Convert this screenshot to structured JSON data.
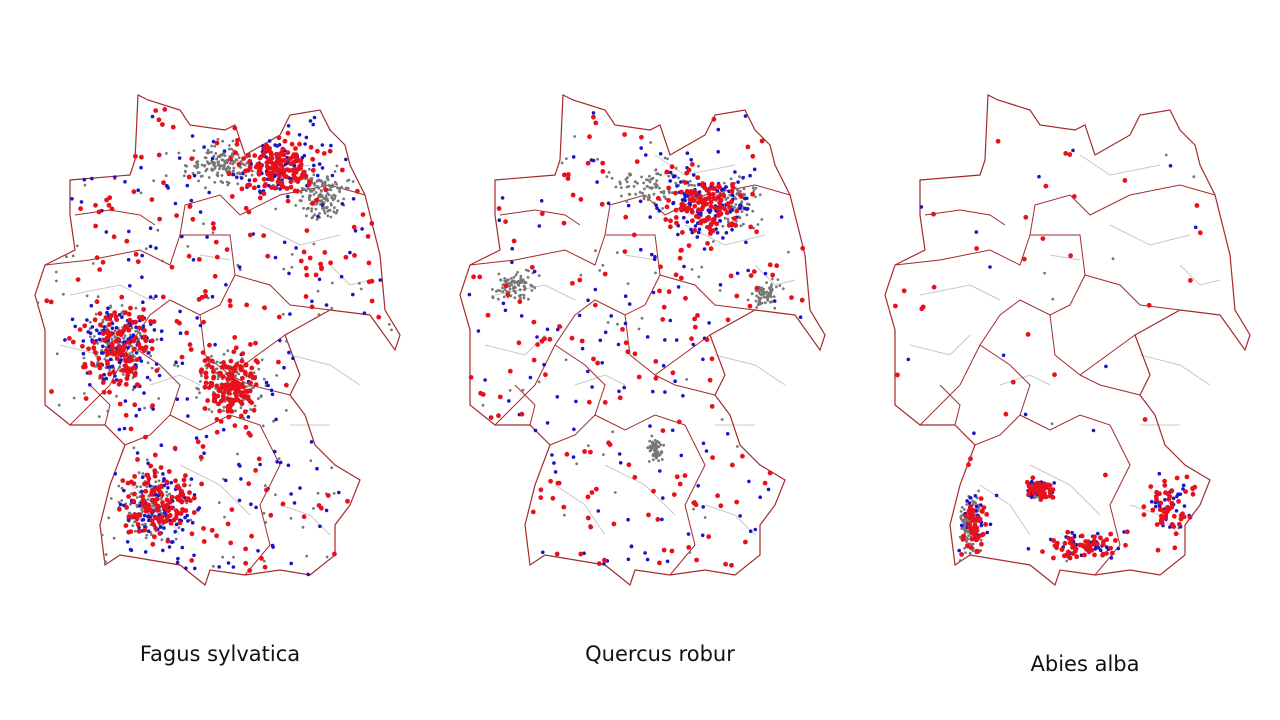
{
  "maps": [
    {
      "species": "Fagus sylvatica"
    },
    {
      "species": "Quercus robur"
    },
    {
      "species": "Abies alba"
    }
  ],
  "colors": {
    "border": "#a52a2a",
    "inner_border": "#c8c8c8",
    "red_points": "#e8101a",
    "blue_points": "#1a14c8",
    "gray_points": "#777777"
  }
}
